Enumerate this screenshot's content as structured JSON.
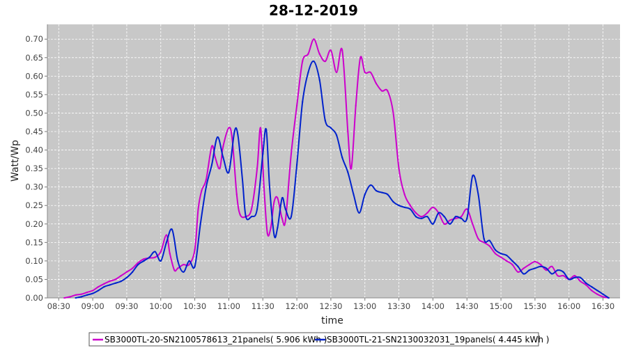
{
  "chart_data": {
    "type": "line",
    "title": "28-12-2019",
    "xlabel": "time",
    "ylabel": "Watt/Wp",
    "ylim": [
      0.0,
      0.74
    ],
    "xlim": [
      "08:20",
      "16:45"
    ],
    "y_ticks": [
      "0.00",
      "0.05",
      "0.10",
      "0.15",
      "0.20",
      "0.25",
      "0.30",
      "0.35",
      "0.40",
      "0.45",
      "0.50",
      "0.55",
      "0.60",
      "0.65",
      "0.70"
    ],
    "x_ticks": [
      "08:30",
      "09:00",
      "09:30",
      "10:00",
      "10:30",
      "11:00",
      "11:30",
      "12:00",
      "12:30",
      "13:00",
      "13:30",
      "14:00",
      "14:30",
      "15:00",
      "15:30",
      "16:00",
      "16:30"
    ],
    "grid": true,
    "legend_position": "bottom",
    "colors": {
      "plot_background": "#c8c8c8",
      "grid": "#ffffff"
    },
    "series": [
      {
        "name": "SB3000TL-20-SN2100578613_21panels( 5.906 kWh )",
        "color": "#cc00cc",
        "points": [
          [
            "08:35",
            0.0
          ],
          [
            "08:40",
            0.003
          ],
          [
            "08:45",
            0.008
          ],
          [
            "08:50",
            0.01
          ],
          [
            "08:55",
            0.015
          ],
          [
            "09:00",
            0.02
          ],
          [
            "09:05",
            0.03
          ],
          [
            "09:10",
            0.038
          ],
          [
            "09:15",
            0.045
          ],
          [
            "09:20",
            0.05
          ],
          [
            "09:25",
            0.06
          ],
          [
            "09:30",
            0.07
          ],
          [
            "09:35",
            0.08
          ],
          [
            "09:40",
            0.095
          ],
          [
            "09:45",
            0.105
          ],
          [
            "09:50",
            0.108
          ],
          [
            "09:55",
            0.11
          ],
          [
            "10:00",
            0.125
          ],
          [
            "10:05",
            0.17
          ],
          [
            "10:08",
            0.12
          ],
          [
            "10:12",
            0.075
          ],
          [
            "10:15",
            0.08
          ],
          [
            "10:20",
            0.09
          ],
          [
            "10:25",
            0.09
          ],
          [
            "10:30",
            0.13
          ],
          [
            "10:33",
            0.24
          ],
          [
            "10:36",
            0.29
          ],
          [
            "10:40",
            0.32
          ],
          [
            "10:45",
            0.41
          ],
          [
            "10:48",
            0.38
          ],
          [
            "10:52",
            0.35
          ],
          [
            "10:55",
            0.41
          ],
          [
            "11:00",
            0.46
          ],
          [
            "11:03",
            0.43
          ],
          [
            "11:07",
            0.28
          ],
          [
            "11:10",
            0.225
          ],
          [
            "11:15",
            0.22
          ],
          [
            "11:20",
            0.24
          ],
          [
            "11:25",
            0.35
          ],
          [
            "11:28",
            0.46
          ],
          [
            "11:31",
            0.3
          ],
          [
            "11:34",
            0.175
          ],
          [
            "11:37",
            0.19
          ],
          [
            "11:40",
            0.26
          ],
          [
            "11:43",
            0.27
          ],
          [
            "11:47",
            0.215
          ],
          [
            "11:50",
            0.21
          ],
          [
            "11:55",
            0.39
          ],
          [
            "12:00",
            0.52
          ],
          [
            "12:05",
            0.64
          ],
          [
            "12:10",
            0.66
          ],
          [
            "12:15",
            0.7
          ],
          [
            "12:20",
            0.66
          ],
          [
            "12:25",
            0.64
          ],
          [
            "12:30",
            0.67
          ],
          [
            "12:35",
            0.61
          ],
          [
            "12:40",
            0.67
          ],
          [
            "12:45",
            0.45
          ],
          [
            "12:48",
            0.35
          ],
          [
            "12:52",
            0.52
          ],
          [
            "12:56",
            0.65
          ],
          [
            "13:00",
            0.61
          ],
          [
            "13:05",
            0.61
          ],
          [
            "13:10",
            0.58
          ],
          [
            "13:15",
            0.56
          ],
          [
            "13:20",
            0.56
          ],
          [
            "13:25",
            0.5
          ],
          [
            "13:30",
            0.35
          ],
          [
            "13:35",
            0.28
          ],
          [
            "13:40",
            0.25
          ],
          [
            "13:45",
            0.23
          ],
          [
            "13:50",
            0.22
          ],
          [
            "13:55",
            0.23
          ],
          [
            "14:00",
            0.245
          ],
          [
            "14:05",
            0.23
          ],
          [
            "14:10",
            0.2
          ],
          [
            "14:15",
            0.21
          ],
          [
            "14:20",
            0.215
          ],
          [
            "14:25",
            0.22
          ],
          [
            "14:30",
            0.24
          ],
          [
            "14:35",
            0.2
          ],
          [
            "14:40",
            0.16
          ],
          [
            "14:45",
            0.15
          ],
          [
            "14:50",
            0.14
          ],
          [
            "14:55",
            0.12
          ],
          [
            "15:00",
            0.11
          ],
          [
            "15:05",
            0.1
          ],
          [
            "15:10",
            0.09
          ],
          [
            "15:15",
            0.07
          ],
          [
            "15:20",
            0.08
          ],
          [
            "15:25",
            0.09
          ],
          [
            "15:30",
            0.098
          ],
          [
            "15:35",
            0.09
          ],
          [
            "15:40",
            0.075
          ],
          [
            "15:45",
            0.085
          ],
          [
            "15:50",
            0.06
          ],
          [
            "15:55",
            0.06
          ],
          [
            "16:00",
            0.05
          ],
          [
            "16:05",
            0.06
          ],
          [
            "16:10",
            0.045
          ],
          [
            "16:15",
            0.035
          ],
          [
            "16:20",
            0.02
          ],
          [
            "16:25",
            0.01
          ],
          [
            "16:30",
            0.003
          ],
          [
            "16:35",
            0.0
          ]
        ]
      },
      {
        "name": "SB3000TL-21-SN2130032031_19panels( 4.445 kWh )",
        "color": "#0022cc",
        "points": [
          [
            "08:45",
            0.0
          ],
          [
            "08:50",
            0.003
          ],
          [
            "08:55",
            0.008
          ],
          [
            "09:00",
            0.012
          ],
          [
            "09:05",
            0.02
          ],
          [
            "09:10",
            0.03
          ],
          [
            "09:15",
            0.035
          ],
          [
            "09:20",
            0.04
          ],
          [
            "09:25",
            0.045
          ],
          [
            "09:30",
            0.055
          ],
          [
            "09:35",
            0.07
          ],
          [
            "09:40",
            0.09
          ],
          [
            "09:45",
            0.1
          ],
          [
            "09:50",
            0.11
          ],
          [
            "09:55",
            0.125
          ],
          [
            "10:00",
            0.1
          ],
          [
            "10:05",
            0.15
          ],
          [
            "10:10",
            0.185
          ],
          [
            "10:15",
            0.1
          ],
          [
            "10:20",
            0.07
          ],
          [
            "10:25",
            0.1
          ],
          [
            "10:30",
            0.085
          ],
          [
            "10:35",
            0.2
          ],
          [
            "10:40",
            0.3
          ],
          [
            "10:45",
            0.36
          ],
          [
            "10:50",
            0.435
          ],
          [
            "10:55",
            0.38
          ],
          [
            "11:00",
            0.34
          ],
          [
            "11:05",
            0.45
          ],
          [
            "11:08",
            0.44
          ],
          [
            "11:12",
            0.32
          ],
          [
            "11:15",
            0.22
          ],
          [
            "11:20",
            0.22
          ],
          [
            "11:25",
            0.24
          ],
          [
            "11:30",
            0.39
          ],
          [
            "11:33",
            0.455
          ],
          [
            "11:36",
            0.3
          ],
          [
            "11:40",
            0.17
          ],
          [
            "11:43",
            0.19
          ],
          [
            "11:47",
            0.27
          ],
          [
            "11:50",
            0.24
          ],
          [
            "11:55",
            0.22
          ],
          [
            "12:00",
            0.36
          ],
          [
            "12:05",
            0.53
          ],
          [
            "12:10",
            0.61
          ],
          [
            "12:15",
            0.64
          ],
          [
            "12:20",
            0.59
          ],
          [
            "12:25",
            0.48
          ],
          [
            "12:30",
            0.46
          ],
          [
            "12:35",
            0.44
          ],
          [
            "12:40",
            0.38
          ],
          [
            "12:45",
            0.34
          ],
          [
            "12:50",
            0.28
          ],
          [
            "12:55",
            0.23
          ],
          [
            "13:00",
            0.28
          ],
          [
            "13:05",
            0.305
          ],
          [
            "13:10",
            0.29
          ],
          [
            "13:15",
            0.285
          ],
          [
            "13:20",
            0.28
          ],
          [
            "13:25",
            0.26
          ],
          [
            "13:30",
            0.25
          ],
          [
            "13:35",
            0.245
          ],
          [
            "13:40",
            0.24
          ],
          [
            "13:45",
            0.22
          ],
          [
            "13:50",
            0.215
          ],
          [
            "13:55",
            0.22
          ],
          [
            "14:00",
            0.2
          ],
          [
            "14:05",
            0.23
          ],
          [
            "14:10",
            0.22
          ],
          [
            "14:15",
            0.2
          ],
          [
            "14:20",
            0.22
          ],
          [
            "14:25",
            0.215
          ],
          [
            "14:30",
            0.215
          ],
          [
            "14:35",
            0.33
          ],
          [
            "14:40",
            0.28
          ],
          [
            "14:45",
            0.16
          ],
          [
            "14:50",
            0.155
          ],
          [
            "14:55",
            0.13
          ],
          [
            "15:00",
            0.12
          ],
          [
            "15:05",
            0.115
          ],
          [
            "15:10",
            0.1
          ],
          [
            "15:15",
            0.085
          ],
          [
            "15:20",
            0.065
          ],
          [
            "15:25",
            0.075
          ],
          [
            "15:30",
            0.08
          ],
          [
            "15:35",
            0.085
          ],
          [
            "15:40",
            0.08
          ],
          [
            "15:45",
            0.065
          ],
          [
            "15:50",
            0.075
          ],
          [
            "15:55",
            0.07
          ],
          [
            "16:00",
            0.05
          ],
          [
            "16:05",
            0.055
          ],
          [
            "16:10",
            0.055
          ],
          [
            "16:15",
            0.04
          ],
          [
            "16:20",
            0.03
          ],
          [
            "16:25",
            0.02
          ],
          [
            "16:30",
            0.01
          ],
          [
            "16:35",
            0.0
          ]
        ]
      }
    ]
  }
}
